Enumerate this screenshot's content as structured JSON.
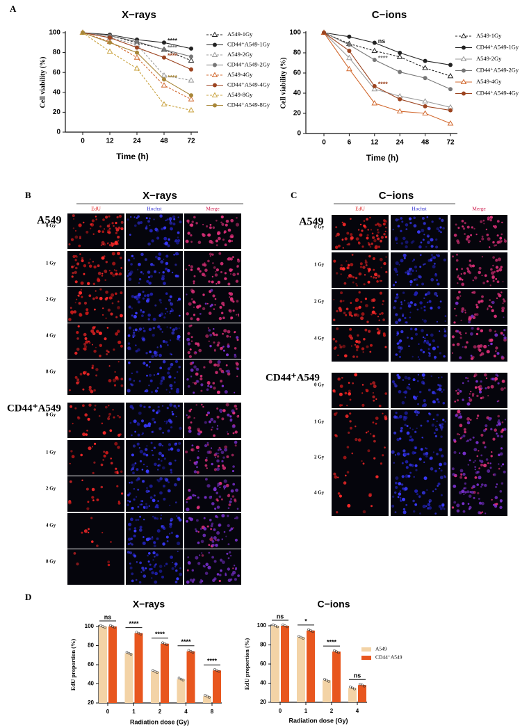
{
  "panel_labels": [
    "A",
    "B",
    "C",
    "D"
  ],
  "chart_data": [
    {
      "type": "line",
      "title": "X−rays",
      "x_label": "Time (h)",
      "y_label": "Cell viability (%)",
      "categories": [
        "0",
        "12",
        "24",
        "48",
        "72"
      ],
      "ylim": [
        0,
        100
      ],
      "yticks": [
        0,
        20,
        40,
        60,
        80,
        100
      ],
      "legend": "right",
      "series": [
        {
          "name": "A549-1Gy",
          "color": "#222222",
          "dashed": true,
          "marker": "open-triangle",
          "values": [
            100,
            97,
            90,
            83,
            72
          ]
        },
        {
          "name": "CD44⁺A549-1Gy",
          "color": "#222222",
          "dashed": false,
          "marker": "filled-circle",
          "values": [
            100,
            98,
            93,
            90,
            84
          ]
        },
        {
          "name": "A549-2Gy",
          "color": "#9a9a9a",
          "dashed": true,
          "marker": "open-triangle",
          "values": [
            100,
            95,
            88,
            57,
            52
          ]
        },
        {
          "name": "CD44⁺A549-2Gy",
          "color": "#777777",
          "dashed": false,
          "marker": "filled-circle",
          "values": [
            100,
            97,
            91,
            83,
            76
          ]
        },
        {
          "name": "A549-4Gy",
          "color": "#d2692f",
          "dashed": true,
          "marker": "open-triangle",
          "values": [
            100,
            91,
            75,
            47,
            33
          ]
        },
        {
          "name": "CD44⁺A549-4Gy",
          "color": "#9c4420",
          "dashed": false,
          "marker": "filled-circle",
          "values": [
            100,
            95,
            85,
            75,
            63
          ]
        },
        {
          "name": "A549-8Gy",
          "color": "#c9a23e",
          "dashed": true,
          "marker": "open-triangle",
          "values": [
            100,
            81,
            64,
            28,
            22
          ]
        },
        {
          "name": "CD44⁺A549-8Gy",
          "color": "#a8873a",
          "dashed": false,
          "marker": "filled-circle",
          "values": [
            100,
            90,
            80,
            53,
            37
          ]
        }
      ],
      "annotations": [
        {
          "text": "****",
          "series": "CD44⁺A549-1Gy",
          "category": "48"
        },
        {
          "text": "****",
          "series": "CD44⁺A549-2Gy",
          "category": "48"
        },
        {
          "text": "****",
          "series": "CD44⁺A549-4Gy",
          "category": "48"
        },
        {
          "text": "****",
          "series": "CD44⁺A549-8Gy",
          "category": "48"
        }
      ]
    },
    {
      "type": "line",
      "title": "C−ions",
      "x_label": "Time (h)",
      "y_label": "Cell viability (%)",
      "categories": [
        "0",
        "6",
        "12",
        "24",
        "48",
        "72"
      ],
      "ylim": [
        0,
        100
      ],
      "yticks": [
        0,
        20,
        40,
        60,
        80,
        100
      ],
      "legend": "right",
      "series": [
        {
          "name": "A549-1Gy",
          "color": "#222222",
          "dashed": true,
          "marker": "open-triangle",
          "values": [
            100,
            89,
            82,
            76,
            65,
            57
          ]
        },
        {
          "name": "CD44⁺A549-1Gy",
          "color": "#222222",
          "dashed": false,
          "marker": "filled-circle",
          "values": [
            100,
            96,
            90,
            80,
            72,
            68
          ]
        },
        {
          "name": "A549-2Gy",
          "color": "#9a9a9a",
          "dashed": false,
          "marker": "open-triangle",
          "values": [
            100,
            75,
            44,
            37,
            32,
            26
          ]
        },
        {
          "name": "CD44⁺A549-2Gy",
          "color": "#777777",
          "dashed": false,
          "marker": "filled-circle",
          "values": [
            100,
            88,
            73,
            61,
            55,
            44
          ]
        },
        {
          "name": "A549-4Gy",
          "color": "#d2692f",
          "dashed": false,
          "marker": "open-triangle",
          "values": [
            100,
            64,
            30,
            22,
            20,
            10
          ]
        },
        {
          "name": "CD44⁺A549-4Gy",
          "color": "#9c4420",
          "dashed": false,
          "marker": "filled-circle",
          "values": [
            100,
            82,
            47,
            34,
            27,
            23
          ]
        }
      ],
      "annotations": [
        {
          "text": "ns",
          "series": "CD44⁺A549-1Gy",
          "category": "12"
        },
        {
          "text": "****",
          "series": "CD44⁺A549-2Gy",
          "category": "12"
        },
        {
          "text": "****",
          "series": "CD44⁺A549-4Gy",
          "category": "12"
        }
      ]
    },
    {
      "type": "bar",
      "title": "X−rays",
      "x_label": "Radiation dose (Gy)",
      "y_label": "EdU proportion (%)",
      "categories": [
        "0",
        "1",
        "2",
        "4",
        "8"
      ],
      "ylim": [
        20,
        100
      ],
      "yticks": [
        20,
        40,
        60,
        80,
        100
      ],
      "legend": false,
      "series": [
        {
          "name": "A549",
          "color": "#f3d3a6",
          "values": [
            100,
            72,
            53,
            45,
            27
          ]
        },
        {
          "name": "CD44⁺A549",
          "color": "#e8561e",
          "values": [
            100,
            93,
            82,
            74,
            54
          ]
        }
      ],
      "annotations": [
        "ns",
        "****",
        "****",
        "****",
        "****"
      ]
    },
    {
      "type": "bar",
      "title": "C−ions",
      "x_label": "Radiation dose (Gy)",
      "y_label": "EdU proportion (%)",
      "categories": [
        "0",
        "1",
        "2",
        "4"
      ],
      "ylim": [
        20,
        100
      ],
      "yticks": [
        20,
        40,
        60,
        80,
        100
      ],
      "legend": "right",
      "series": [
        {
          "name": "A549",
          "color": "#f3d3a6",
          "values": [
            100,
            88,
            43,
            35
          ]
        },
        {
          "name": "CD44⁺A549",
          "color": "#e8561e",
          "values": [
            100,
            95,
            73,
            38
          ]
        }
      ],
      "annotations": [
        "ns",
        "*",
        "****",
        "ns"
      ]
    }
  ],
  "microscopy": [
    {
      "title": "X−rays",
      "columns": [
        "EdU",
        "Hochst",
        "Merge"
      ],
      "groups": [
        {
          "label": "A549",
          "rows": [
            "0 Gy",
            "1 Gy",
            "2 Gy",
            "4 Gy",
            "8 Gy"
          ]
        },
        {
          "label": "CD44⁺A549",
          "rows": [
            "0 Gy",
            "1 Gy",
            "2 Gy",
            "4 Gy",
            "8 Gy"
          ]
        }
      ]
    },
    {
      "title": "C−ions",
      "columns": [
        "EdU",
        "Hochst",
        "Merge"
      ],
      "groups": [
        {
          "label": "A549",
          "rows": [
            "0 Gy",
            "1 Gy",
            "2 Gy",
            "4 Gy"
          ]
        },
        {
          "label": "CD44⁺A549",
          "rows": [
            "0 Gy",
            "1 Gy",
            "2 Gy",
            "4 Gy"
          ]
        }
      ]
    }
  ]
}
